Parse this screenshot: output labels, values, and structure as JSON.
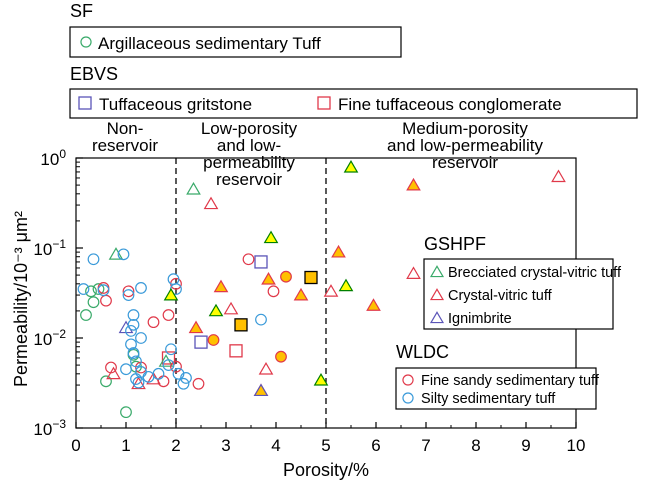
{
  "chart_data": {
    "type": "scatter",
    "xlabel": "Porosity/%",
    "ylabel": "Permeability/10⁻³ μm²",
    "xlim": [
      0,
      10
    ],
    "ylim": [
      0.001,
      1
    ],
    "yscale": "log",
    "x_ticks": [
      "0",
      "1",
      "2",
      "3",
      "4",
      "5",
      "6",
      "7",
      "8",
      "9",
      "10"
    ],
    "y_ticks": [
      {
        "base": "10",
        "exp": "0",
        "value": 1
      },
      {
        "base": "10",
        "exp": "−1",
        "value": 0.1
      },
      {
        "base": "10",
        "exp": "−2",
        "value": 0.01
      },
      {
        "base": "10",
        "exp": "−3",
        "value": 0.001
      }
    ],
    "dividers": [
      2,
      5
    ],
    "zones": [
      {
        "lines": [
          "Non-",
          "reservoir"
        ]
      },
      {
        "lines": [
          "Low-porosity",
          "and low-",
          "permeability",
          "reservoir"
        ]
      },
      {
        "lines": [
          "Medium-porosity",
          "and low-permeability",
          "reservoir"
        ]
      }
    ],
    "legend_groups": [
      {
        "title": "SF",
        "position": "top",
        "items": [
          "Argillaceous sedimentary Tuff"
        ]
      },
      {
        "title": "EBVS",
        "position": "top",
        "items": [
          "Tuffaceous gritstone",
          "Fine tuffaceous conglomerate"
        ]
      },
      {
        "title": "GSHPF",
        "position": "right",
        "items": [
          "Brecciated crystal-vitric tuff",
          "Crystal-vitric tuff",
          "Ignimbrite"
        ]
      },
      {
        "title": "WLDC",
        "position": "right",
        "items": [
          "Fine sandy sedimentary tuff",
          "Silty sedimentary tuff"
        ]
      }
    ],
    "series": [
      {
        "name": "Argillaceous sedimentary Tuff",
        "group": "SF",
        "marker": "circle",
        "color": "#3aaa6a",
        "points": [
          [
            0.2,
            0.018
          ],
          [
            0.3,
            0.033
          ],
          [
            0.45,
            0.035
          ],
          [
            0.6,
            0.0033
          ],
          [
            1.0,
            0.0015
          ],
          [
            1.15,
            0.0065
          ],
          [
            1.2,
            0.0048
          ],
          [
            0.35,
            0.025
          ]
        ]
      },
      {
        "name": "Tuffaceous gritstone",
        "group": "EBVS",
        "marker": "square",
        "color": "#5b55b8",
        "points": [
          [
            2.5,
            0.009
          ],
          [
            3.7,
            0.07
          ]
        ]
      },
      {
        "name": "Fine tuffaceous conglomerate",
        "group": "EBVS",
        "marker": "square",
        "color": "#e0394a",
        "points": [
          [
            3.2,
            0.0072
          ],
          [
            1.85,
            0.006
          ]
        ]
      },
      {
        "name": "Brecciated crystal-vitric tuff",
        "group": "GSHPF",
        "marker": "triangle",
        "color": "#3aaa6a",
        "points": [
          [
            0.8,
            0.085
          ],
          [
            2.35,
            0.45
          ],
          [
            1.8,
            0.0055
          ]
        ]
      },
      {
        "name": "Crystal-vitric tuff",
        "group": "GSHPF",
        "marker": "triangle",
        "color": "#e0394a",
        "points": [
          [
            2.7,
            0.31
          ],
          [
            9.65,
            0.62
          ],
          [
            6.75,
            0.052
          ],
          [
            5.1,
            0.033
          ],
          [
            3.1,
            0.021
          ],
          [
            3.8,
            0.0045
          ],
          [
            1.55,
            0.0035
          ],
          [
            1.25,
            0.0031
          ],
          [
            0.75,
            0.004
          ]
        ]
      },
      {
        "name": "Ignimbrite",
        "group": "GSHPF",
        "marker": "triangle",
        "color": "#5b55b8",
        "points": [
          [
            1.0,
            0.013
          ]
        ]
      },
      {
        "name": "Fine sandy sedimentary tuff",
        "group": "WLDC",
        "marker": "circle",
        "color": "#e0394a",
        "points": [
          [
            0.55,
            0.036
          ],
          [
            0.6,
            0.026
          ],
          [
            1.05,
            0.033
          ],
          [
            1.55,
            0.015
          ],
          [
            1.85,
            0.018
          ],
          [
            2.0,
            0.04
          ],
          [
            3.45,
            0.075
          ],
          [
            3.95,
            0.033
          ],
          [
            2.45,
            0.0031
          ],
          [
            0.7,
            0.0047
          ],
          [
            1.3,
            0.0047
          ],
          [
            2.0,
            0.0048
          ],
          [
            1.75,
            0.0033
          ]
        ]
      },
      {
        "name": "Silty sedimentary tuff",
        "group": "WLDC",
        "marker": "circle",
        "color": "#3a9ad9",
        "points": [
          [
            0.35,
            0.075
          ],
          [
            0.95,
            0.085
          ],
          [
            0.15,
            0.035
          ],
          [
            0.55,
            0.034
          ],
          [
            1.05,
            0.03
          ],
          [
            1.3,
            0.036
          ],
          [
            1.15,
            0.018
          ],
          [
            1.15,
            0.014
          ],
          [
            1.1,
            0.012
          ],
          [
            1.3,
            0.01
          ],
          [
            1.1,
            0.0085
          ],
          [
            1.15,
            0.0068
          ],
          [
            1.2,
            0.0055
          ],
          [
            1.0,
            0.0045
          ],
          [
            1.3,
            0.0042
          ],
          [
            1.45,
            0.0037
          ],
          [
            1.2,
            0.0035
          ],
          [
            1.65,
            0.004
          ],
          [
            1.9,
            0.0075
          ],
          [
            1.95,
            0.045
          ],
          [
            2.0,
            0.035
          ],
          [
            1.85,
            0.005
          ],
          [
            2.05,
            0.004
          ],
          [
            2.15,
            0.0031
          ],
          [
            2.2,
            0.0036
          ],
          [
            3.7,
            0.016
          ],
          [
            1.25,
            0.0032
          ]
        ]
      },
      {
        "name": "",
        "group": "filled",
        "marker": "triangle",
        "color": "#008000",
        "fill": "#ffff00",
        "points": [
          [
            5.5,
            0.79
          ],
          [
            3.9,
            0.13
          ],
          [
            2.8,
            0.02
          ],
          [
            1.9,
            0.03
          ],
          [
            5.4,
            0.038
          ],
          [
            4.9,
            0.0034
          ]
        ]
      },
      {
        "name": "",
        "group": "filled",
        "marker": "triangle",
        "color": "#e0394a",
        "fill": "#ffc000",
        "points": [
          [
            6.75,
            0.5
          ],
          [
            5.25,
            0.09
          ],
          [
            3.85,
            0.045
          ],
          [
            4.5,
            0.03
          ],
          [
            2.9,
            0.037
          ],
          [
            2.4,
            0.013
          ],
          [
            3.7,
            0.0026
          ],
          [
            5.95,
            0.023
          ]
        ]
      },
      {
        "name": "",
        "group": "filled",
        "marker": "triangle",
        "color": "#5b55b8",
        "fill": "#ffc000",
        "points": [
          [
            3.7,
            0.0026
          ]
        ]
      },
      {
        "name": "",
        "group": "filled",
        "marker": "circle",
        "color": "#e0394a",
        "fill": "#ffc000",
        "points": [
          [
            4.2,
            0.048
          ],
          [
            2.75,
            0.0095
          ],
          [
            4.1,
            0.0062
          ]
        ]
      },
      {
        "name": "",
        "group": "filled",
        "marker": "square",
        "color": "#000000",
        "fill": "#ffc000",
        "points": [
          [
            4.7,
            0.047
          ],
          [
            3.3,
            0.014
          ]
        ]
      }
    ]
  }
}
